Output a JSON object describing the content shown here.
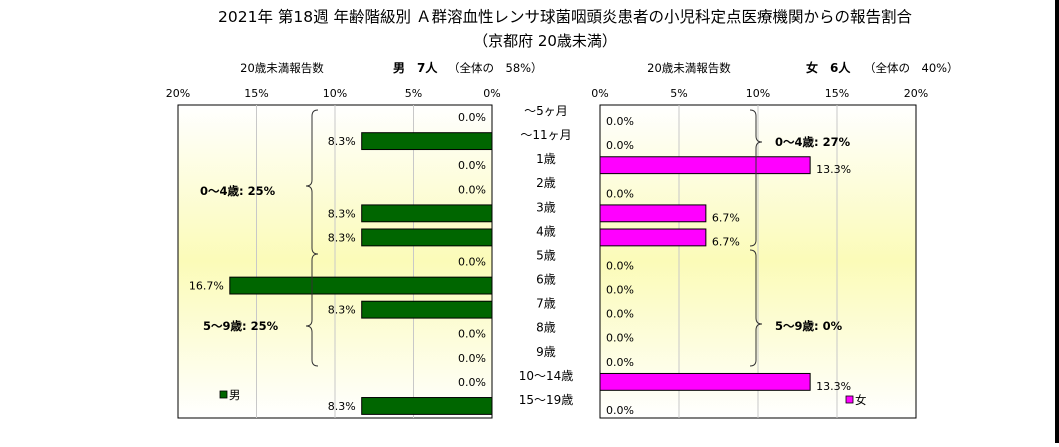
{
  "chart_data": {
    "type": "bar",
    "title": "2021年 第18週 年齢階級別 Ａ群溶血性レンサ球菌咽頭炎患者の小児科定点医療機関からの報告割合",
    "subtitle": "（京都府 20歳未満）",
    "categories": [
      "～5ヶ月",
      "～11ヶ月",
      "1歳",
      "2歳",
      "3歳",
      "4歳",
      "5歳",
      "6歳",
      "7歳",
      "8歳",
      "9歳",
      "10～14歳",
      "15～19歳"
    ],
    "xlim": [
      0,
      20
    ],
    "ticks": [
      "0%",
      "5%",
      "10%",
      "15%",
      "20%"
    ],
    "series": [
      {
        "name": "男",
        "color": "#006600",
        "values": [
          0.0,
          8.3,
          0.0,
          0.0,
          8.3,
          8.3,
          0.0,
          16.7,
          8.3,
          0.0,
          0.0,
          0.0,
          8.3
        ],
        "labels": [
          "0.0%",
          "8.3%",
          "0.0%",
          "0.0%",
          "8.3%",
          "8.3%",
          "0.0%",
          "16.7%",
          "8.3%",
          "0.0%",
          "0.0%",
          "0.0%",
          "8.3%"
        ],
        "axis_caption": "20歳未満報告数",
        "count_text": "男　7人",
        "share_text": "（全体の　58%）",
        "group_labels": [
          "0～4歳: 25%",
          "5～9歳: 25%"
        ]
      },
      {
        "name": "女",
        "color": "#ff00ff",
        "values": [
          0.0,
          0.0,
          13.3,
          0.0,
          6.7,
          6.7,
          0.0,
          0.0,
          0.0,
          0.0,
          0.0,
          13.3,
          0.0
        ],
        "labels": [
          "0.0%",
          "0.0%",
          "13.3%",
          "0.0%",
          "6.7%",
          "6.7%",
          "0.0%",
          "0.0%",
          "0.0%",
          "0.0%",
          "0.0%",
          "13.3%",
          "0.0%"
        ],
        "axis_caption": "20歳未満報告数",
        "count_text": "女　6人",
        "share_text": "（全体の　40%）",
        "group_labels": [
          "0～4歳: 27%",
          "5～9歳: 0%"
        ]
      }
    ],
    "grid": true,
    "legend": "bottom inside each panel"
  }
}
